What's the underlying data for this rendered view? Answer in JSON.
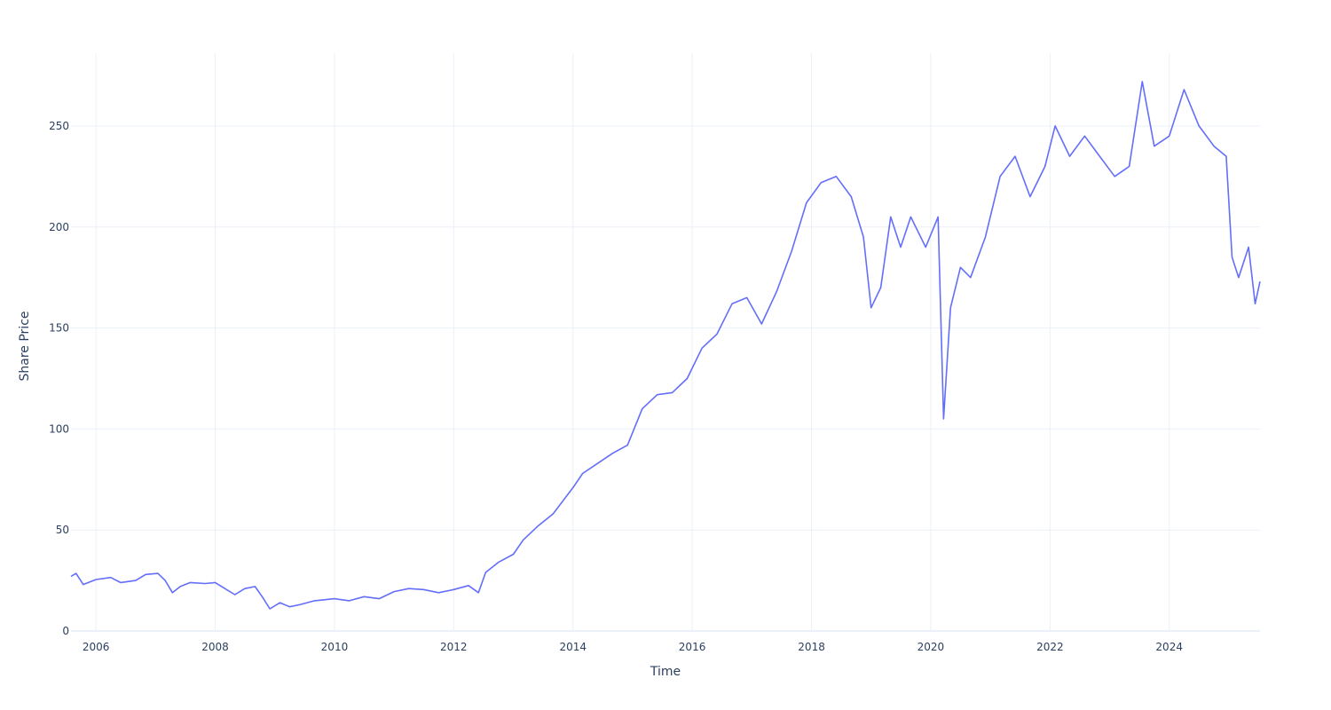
{
  "chart_data": {
    "type": "line",
    "title": "",
    "xlabel": "Time",
    "ylabel": "Share Price",
    "xlim": [
      "2005-08-01",
      "2025-07-10"
    ],
    "ylim": [
      0,
      286
    ],
    "x_ticks": [
      "2006",
      "2008",
      "2010",
      "2012",
      "2014",
      "2016",
      "2018",
      "2020",
      "2022",
      "2024"
    ],
    "y_ticks": [
      0,
      50,
      100,
      150,
      200,
      250
    ],
    "grid": true,
    "legend": "none",
    "series": [
      {
        "color": "#636efa",
        "points": [
          [
            "2005-08-01",
            27
          ],
          [
            "2005-09-01",
            28.5
          ],
          [
            "2005-10-15",
            23
          ],
          [
            "2006-01-01",
            25.5
          ],
          [
            "2006-04-01",
            26.5
          ],
          [
            "2006-06-01",
            24
          ],
          [
            "2006-09-01",
            25
          ],
          [
            "2006-11-01",
            28
          ],
          [
            "2007-01-15",
            28.5
          ],
          [
            "2007-03-01",
            25
          ],
          [
            "2007-04-15",
            19
          ],
          [
            "2007-06-01",
            22
          ],
          [
            "2007-08-01",
            24
          ],
          [
            "2007-11-01",
            23.5
          ],
          [
            "2008-01-01",
            24
          ],
          [
            "2008-03-01",
            21
          ],
          [
            "2008-05-01",
            18
          ],
          [
            "2008-07-01",
            21
          ],
          [
            "2008-09-01",
            22
          ],
          [
            "2008-10-15",
            17
          ],
          [
            "2008-12-01",
            11
          ],
          [
            "2009-02-01",
            14
          ],
          [
            "2009-04-01",
            12
          ],
          [
            "2009-06-01",
            13
          ],
          [
            "2009-09-01",
            15
          ],
          [
            "2010-01-01",
            16
          ],
          [
            "2010-04-01",
            15
          ],
          [
            "2010-07-01",
            17
          ],
          [
            "2010-10-01",
            16
          ],
          [
            "2011-01-01",
            19.5
          ],
          [
            "2011-04-01",
            21
          ],
          [
            "2011-07-01",
            20.5
          ],
          [
            "2011-10-01",
            19
          ],
          [
            "2012-01-01",
            20.5
          ],
          [
            "2012-04-01",
            22.5
          ],
          [
            "2012-06-01",
            19
          ],
          [
            "2012-07-15",
            29
          ],
          [
            "2012-10-01",
            34
          ],
          [
            "2013-01-01",
            38
          ],
          [
            "2013-03-01",
            45
          ],
          [
            "2013-06-01",
            52
          ],
          [
            "2013-09-01",
            58
          ],
          [
            "2014-01-01",
            71
          ],
          [
            "2014-03-01",
            78
          ],
          [
            "2014-06-01",
            83
          ],
          [
            "2014-09-01",
            88
          ],
          [
            "2014-12-01",
            92
          ],
          [
            "2015-03-01",
            110
          ],
          [
            "2015-06-01",
            117
          ],
          [
            "2015-09-01",
            118
          ],
          [
            "2015-12-01",
            125
          ],
          [
            "2016-03-01",
            140
          ],
          [
            "2016-06-01",
            147
          ],
          [
            "2016-09-01",
            162
          ],
          [
            "2016-12-01",
            165
          ],
          [
            "2017-03-01",
            152
          ],
          [
            "2017-06-01",
            168
          ],
          [
            "2017-09-01",
            188
          ],
          [
            "2017-12-01",
            212
          ],
          [
            "2018-03-01",
            222
          ],
          [
            "2018-06-01",
            225
          ],
          [
            "2018-09-01",
            215
          ],
          [
            "2018-11-15",
            195
          ],
          [
            "2019-01-01",
            160
          ],
          [
            "2019-03-01",
            170
          ],
          [
            "2019-05-01",
            205
          ],
          [
            "2019-07-01",
            190
          ],
          [
            "2019-09-01",
            205
          ],
          [
            "2019-12-01",
            190
          ],
          [
            "2020-02-15",
            205
          ],
          [
            "2020-03-20",
            105
          ],
          [
            "2020-05-01",
            160
          ],
          [
            "2020-07-01",
            180
          ],
          [
            "2020-09-01",
            175
          ],
          [
            "2020-12-01",
            195
          ],
          [
            "2021-03-01",
            225
          ],
          [
            "2021-06-01",
            235
          ],
          [
            "2021-09-01",
            215
          ],
          [
            "2021-12-01",
            230
          ],
          [
            "2022-02-01",
            250
          ],
          [
            "2022-05-01",
            235
          ],
          [
            "2022-08-01",
            245
          ],
          [
            "2022-11-01",
            235
          ],
          [
            "2023-02-01",
            225
          ],
          [
            "2023-05-01",
            230
          ],
          [
            "2023-07-20",
            272
          ],
          [
            "2023-10-01",
            240
          ],
          [
            "2024-01-01",
            245
          ],
          [
            "2024-04-01",
            268
          ],
          [
            "2024-07-01",
            250
          ],
          [
            "2024-10-01",
            240
          ],
          [
            "2024-12-15",
            235
          ],
          [
            "2025-01-20",
            185
          ],
          [
            "2025-03-01",
            175
          ],
          [
            "2025-05-01",
            190
          ],
          [
            "2025-06-10",
            162
          ],
          [
            "2025-07-10",
            173
          ]
        ]
      }
    ]
  }
}
